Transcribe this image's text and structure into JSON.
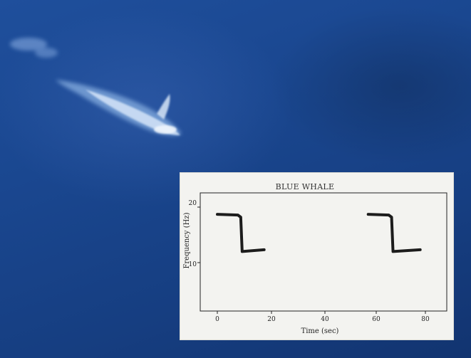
{
  "photo": {
    "subject": "blue whale",
    "background_color": "#1a4790"
  },
  "spectrogram": {
    "title": "BLUE WHALE",
    "xlabel": "Time (sec)",
    "ylabel": "Frequency (Hz)",
    "x_ticks": [
      "0",
      "20",
      "40",
      "60",
      "80"
    ],
    "y_ticks": [
      "20",
      "10"
    ],
    "ink_color": "#1c1c1c",
    "calls": [
      {
        "start_time": 0,
        "high_freq": 18.7,
        "drop_time": 9,
        "low_freq": 12.0,
        "end_time": 18
      },
      {
        "start_time": 58,
        "high_freq": 18.7,
        "drop_time": 67,
        "low_freq": 12.0,
        "end_time": 78
      }
    ]
  }
}
